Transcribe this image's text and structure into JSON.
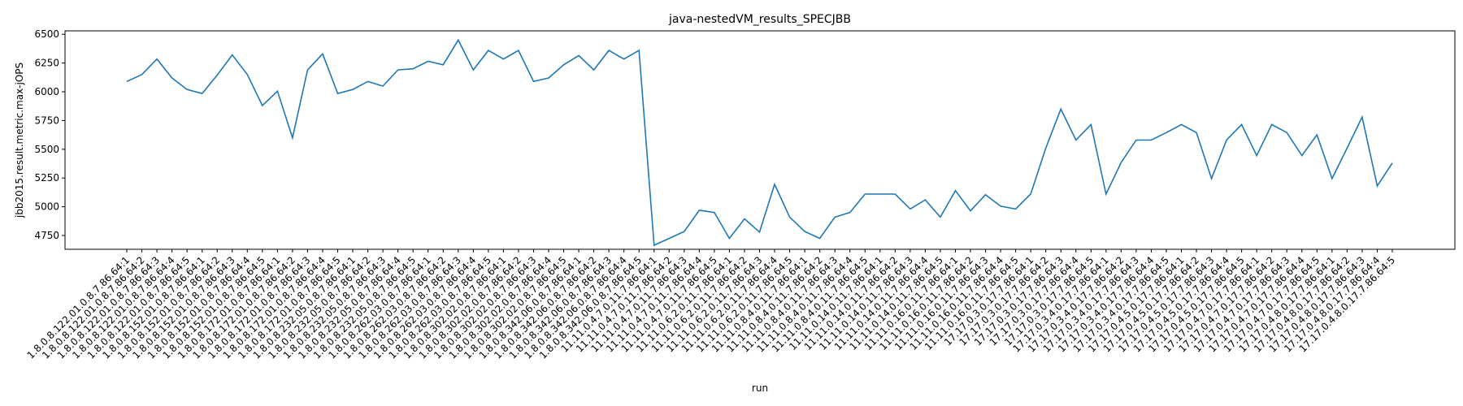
{
  "chart_data": {
    "type": "line",
    "title": "java-nestedVM_results_SPECJBB",
    "xlabel": "run",
    "ylabel": "jbb2015.result.metric.max-jOPS",
    "ylim": [
      4630,
      6530
    ],
    "yticks": [
      4750,
      5000,
      5250,
      5500,
      5750,
      6000,
      6250,
      6500
    ],
    "grid": false,
    "line_color": "#1f77b4",
    "categories": [
      "1.8.0.8.122.01.0.8.7.86.64:1",
      "1.8.0.8.122.01.0.8.7.86.64:2",
      "1.8.0.8.122.01.0.8.7.86.64:3",
      "1.8.0.8.122.01.0.8.7.86.64:4",
      "1.8.0.8.122.01.0.8.7.86.64:5",
      "1.8.0.8.152.01.0.8.7.86.64:1",
      "1.8.0.8.152.01.0.8.7.86.64:2",
      "1.8.0.8.152.01.0.8.7.86.64:3",
      "1.8.0.8.152.01.0.8.7.86.64:4",
      "1.8.0.8.152.01.0.8.7.86.64:5",
      "1.8.0.8.172.01.0.8.7.86.64:1",
      "1.8.0.8.172.01.0.8.7.86.64:2",
      "1.8.0.8.172.01.0.8.7.86.64:3",
      "1.8.0.8.172.01.0.8.7.86.64:4",
      "1.8.0.8.172.01.0.8.7.86.64:5",
      "1.8.0.8.232.05.0.8.7.86.64:1",
      "1.8.0.8.232.05.0.8.7.86.64:2",
      "1.8.0.8.232.05.0.8.7.86.64:3",
      "1.8.0.8.232.05.0.8.7.86.64:4",
      "1.8.0.8.232.05.0.8.7.86.64:5",
      "1.8.0.8.262.03.0.8.7.86.64:1",
      "1.8.0.8.262.03.0.8.7.86.64:2",
      "1.8.0.8.262.03.0.8.7.86.64:3",
      "1.8.0.8.262.03.0.8.7.86.64:4",
      "1.8.0.8.262.03.0.8.7.86.64:5",
      "1.8.0.8.302.02.0.8.7.86.64:1",
      "1.8.0.8.302.02.0.8.7.86.64:2",
      "1.8.0.8.302.02.0.8.7.86.64:3",
      "1.8.0.8.302.02.0.8.7.86.64:4",
      "1.8.0.8.302.02.0.8.7.86.64:5",
      "1.8.0.8.342.06.0.8.7.86.64:1",
      "1.8.0.8.342.06.0.8.7.86.64:2",
      "1.8.0.8.342.06.0.8.7.86.64:3",
      "1.8.0.8.342.06.0.8.7.86.64:4",
      "1.8.0.8.342.06.0.8.7.86.64:5",
      "11.11.0.4.7.0.11.7.86.64:1",
      "11.11.0.4.7.0.11.7.86.64:2",
      "11.11.0.4.7.0.11.7.86.64:3",
      "11.11.0.4.7.0.11.7.86.64:4",
      "11.11.0.4.7.0.11.7.86.64:5",
      "11.11.0.6.2.0.11.7.86.64:1",
      "11.11.0.6.2.0.11.7.86.64:2",
      "11.11.0.6.2.0.11.7.86.64:3",
      "11.11.0.6.2.0.11.7.86.64:4",
      "11.11.0.6.2.0.11.7.86.64:5",
      "11.11.0.8.4.0.11.7.86.64:1",
      "11.11.0.8.4.0.11.7.86.64:2",
      "11.11.0.8.4.0.11.7.86.64:3",
      "11.11.0.8.4.0.11.7.86.64:4",
      "11.11.0.8.4.0.11.7.86.64:5",
      "11.11.0.14.0.11.7.86.64:1",
      "11.11.0.14.0.11.7.86.64:2",
      "11.11.0.14.0.11.7.86.64:3",
      "11.11.0.14.0.11.7.86.64:4",
      "11.11.0.14.0.11.7.86.64:5",
      "11.11.0.16.0.11.7.86.64:1",
      "11.11.0.16.0.11.7.86.64:2",
      "11.11.0.16.0.11.7.86.64:3",
      "11.11.0.16.0.11.7.86.64:4",
      "11.11.0.16.0.11.7.86.64:5",
      "17.17.0.3.0.17.7.86.64:1",
      "17.17.0.3.0.17.7.86.64:2",
      "17.17.0.3.0.17.7.86.64:3",
      "17.17.0.3.0.17.7.86.64:4",
      "17.17.0.3.0.17.7.86.64:5",
      "17.17.0.3.4.0.17.7.86.64:1",
      "17.17.0.3.4.0.17.7.86.64:2",
      "17.17.0.3.4.0.17.7.86.64:3",
      "17.17.0.3.4.0.17.7.86.64:4",
      "17.17.0.3.4.0.17.7.86.64:5",
      "17.17.0.4.5.0.17.7.86.64:1",
      "17.17.0.4.5.0.17.7.86.64:2",
      "17.17.0.4.5.0.17.7.86.64:3",
      "17.17.0.4.5.0.17.7.86.64:4",
      "17.17.0.4.5.0.17.7.86.64:5",
      "17.17.0.4.7.0.17.7.86.64:1",
      "17.17.0.4.7.0.17.7.86.64:2",
      "17.17.0.4.7.0.17.7.86.64:3",
      "17.17.0.4.7.0.17.7.86.64:4",
      "17.17.0.4.7.0.17.7.86.64:5",
      "17.17.0.4.8.0.17.7.86.64:1",
      "17.17.0.4.8.0.17.7.86.64:2",
      "17.17.0.4.8.0.17.7.86.64:3",
      "17.17.0.4.8.0.17.7.86.64:4",
      "17.17.0.4.8.0.17.7.86.64:5"
    ],
    "series": [
      {
        "values": [
          6090,
          6150,
          6285,
          6120,
          6020,
          5985,
          6145,
          6320,
          6150,
          5880,
          6005,
          5600,
          6190,
          6330,
          5985,
          6020,
          6090,
          6050,
          6190,
          6200,
          6265,
          6235,
          6450,
          6190,
          6360,
          6285,
          6360,
          6090,
          6120,
          6235,
          6315,
          6190,
          6360,
          6285,
          6360,
          4665,
          4725,
          4785,
          4970,
          4950,
          4725,
          4895,
          4780,
          5195,
          4910,
          4785,
          4725,
          4910,
          4950,
          5110,
          5110,
          5110,
          4980,
          5060,
          4910,
          5140,
          4965,
          5105,
          5005,
          4980,
          5110,
          5510,
          5850,
          5580,
          5715,
          5110,
          5385,
          5580,
          5580,
          5645,
          5715,
          5645,
          5245,
          5580,
          5715,
          5445,
          5715,
          5645,
          5445,
          5625,
          5245,
          5510,
          5780,
          5180,
          5380
        ]
      }
    ]
  }
}
